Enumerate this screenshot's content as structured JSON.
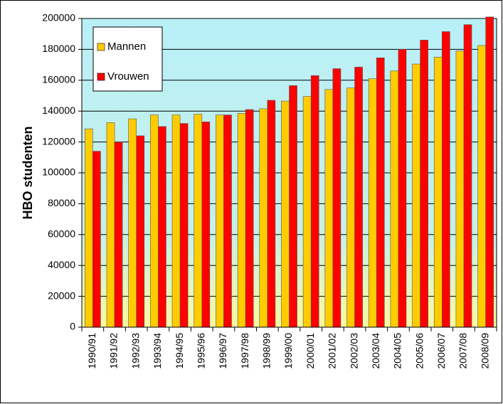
{
  "chart_data": {
    "type": "bar",
    "y_label": "HBO studenten",
    "categories": [
      "1990/91",
      "1991/92",
      "1992/93",
      "1993/94",
      "1994/95",
      "1995/96",
      "1996/97",
      "1997/98",
      "1998/99",
      "1999/00",
      "2000/01",
      "2001/02",
      "2002/03",
      "2003/04",
      "2004/05",
      "2005/06",
      "2006/07",
      "2007/08",
      "2008/09"
    ],
    "series": [
      {
        "name": "Mannen",
        "color": "#ffcc00",
        "values": [
          128500,
          132500,
          135000,
          137500,
          137500,
          138000,
          137500,
          138500,
          141500,
          146500,
          149500,
          154000,
          155000,
          161000,
          166000,
          170500,
          175000,
          179000,
          182500
        ]
      },
      {
        "name": "Vrouwen",
        "color": "#ff0000",
        "values": [
          114000,
          120000,
          124000,
          130000,
          132000,
          133000,
          137500,
          141000,
          147000,
          156500,
          163000,
          167500,
          168500,
          174500,
          180000,
          186000,
          191500,
          196000,
          201000
        ]
      }
    ],
    "ylim": [
      0,
      200000
    ],
    "yticks": [
      0,
      20000,
      40000,
      60000,
      80000,
      100000,
      120000,
      140000,
      160000,
      180000,
      200000
    ],
    "grid": true,
    "legend": "top-left"
  }
}
